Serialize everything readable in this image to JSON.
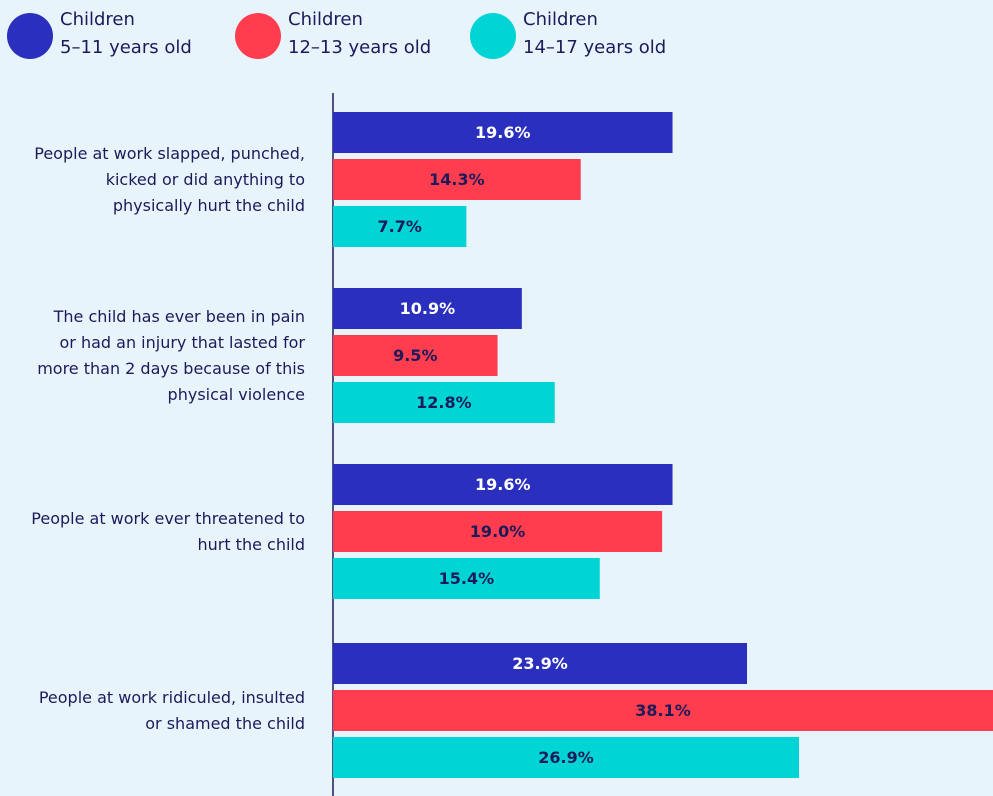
{
  "chart_data": {
    "type": "bar",
    "orientation": "horizontal",
    "categories": [
      "People at work slapped, punched,\nkicked or did anything to\nphysically hurt the child",
      "The child has ever been in pain\nor had an injury that lasted for\nmore than 2 days because of this\nphysical violence",
      "People at work ever threatened to\nhurt the child",
      "People at work ridiculed, insulted\nor shamed the child"
    ],
    "series": [
      {
        "name": "Children\n5–11 years old",
        "color": "#2a2fbd",
        "label_color": "#ffffff",
        "values": [
          19.6,
          10.9,
          19.6,
          23.9
        ],
        "value_labels": [
          "19.6%",
          "10.9%",
          "19.6%",
          "23.9%"
        ]
      },
      {
        "name": "Children\n12–13 years old",
        "color": "#ff3d4f",
        "label_color": "#1b1b5a",
        "values": [
          14.3,
          9.5,
          19.0,
          38.1
        ],
        "value_labels": [
          "14.3%",
          "9.5%",
          "19.0%",
          "38.1%"
        ]
      },
      {
        "name": "Children\n14–17 years old",
        "color": "#00d4d4",
        "label_color": "#1b1b5a",
        "values": [
          7.7,
          12.8,
          15.4,
          26.9
        ],
        "value_labels": [
          "7.7%",
          "12.8%",
          "15.4%",
          "26.9%"
        ]
      }
    ],
    "legend": "top-left",
    "grid": false
  }
}
